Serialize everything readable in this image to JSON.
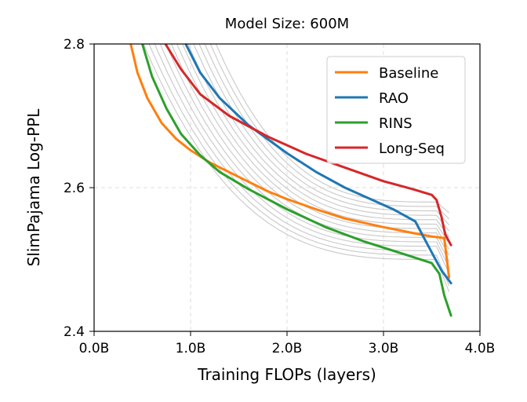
{
  "chart_data": {
    "type": "line",
    "title": "Model Size: 600M",
    "xlabel": "Training FLOPs (layers)",
    "ylabel": "SlimPajama Log-PPL",
    "xlim": [
      0,
      4.0
    ],
    "ylim": [
      2.4,
      2.8
    ],
    "xticks": [
      0,
      1,
      2,
      3,
      4
    ],
    "xtick_labels": [
      "0.0B",
      "1.0B",
      "2.0B",
      "3.0B",
      "4.0B"
    ],
    "yticks": [
      2.4,
      2.6,
      2.8
    ],
    "ytick_labels": [
      "2.4",
      "2.6",
      "2.8"
    ],
    "grid": true,
    "legend_position": "top-right",
    "series": [
      {
        "name": "Baseline",
        "color": "#ff7f0e",
        "points": [
          [
            0.38,
            2.8
          ],
          [
            0.45,
            2.76
          ],
          [
            0.55,
            2.725
          ],
          [
            0.7,
            2.69
          ],
          [
            0.85,
            2.668
          ],
          [
            1.0,
            2.652
          ],
          [
            1.2,
            2.635
          ],
          [
            1.5,
            2.615
          ],
          [
            1.8,
            2.595
          ],
          [
            2.0,
            2.584
          ],
          [
            2.3,
            2.57
          ],
          [
            2.6,
            2.557
          ],
          [
            3.0,
            2.545
          ],
          [
            3.3,
            2.537
          ],
          [
            3.5,
            2.532
          ],
          [
            3.63,
            2.53
          ],
          [
            3.68,
            2.475
          ]
        ]
      },
      {
        "name": "RAO",
        "color": "#1f77b4",
        "points": [
          [
            0.95,
            2.8
          ],
          [
            1.1,
            2.76
          ],
          [
            1.3,
            2.725
          ],
          [
            1.6,
            2.687
          ],
          [
            2.0,
            2.648
          ],
          [
            2.3,
            2.622
          ],
          [
            2.6,
            2.6
          ],
          [
            2.9,
            2.582
          ],
          [
            3.1,
            2.57
          ],
          [
            3.33,
            2.553
          ],
          [
            3.42,
            2.53
          ],
          [
            3.5,
            2.51
          ],
          [
            3.6,
            2.485
          ],
          [
            3.7,
            2.467
          ]
        ]
      },
      {
        "name": "RINS",
        "color": "#2ca02c",
        "points": [
          [
            0.5,
            2.8
          ],
          [
            0.6,
            2.755
          ],
          [
            0.75,
            2.71
          ],
          [
            0.9,
            2.675
          ],
          [
            1.1,
            2.645
          ],
          [
            1.3,
            2.622
          ],
          [
            1.6,
            2.598
          ],
          [
            2.0,
            2.57
          ],
          [
            2.4,
            2.545
          ],
          [
            2.8,
            2.525
          ],
          [
            3.2,
            2.508
          ],
          [
            3.5,
            2.495
          ],
          [
            3.58,
            2.48
          ],
          [
            3.63,
            2.45
          ],
          [
            3.7,
            2.422
          ]
        ]
      },
      {
        "name": "Long-Seq",
        "color": "#d62728",
        "points": [
          [
            0.74,
            2.8
          ],
          [
            0.9,
            2.765
          ],
          [
            1.1,
            2.73
          ],
          [
            1.4,
            2.7
          ],
          [
            1.8,
            2.671
          ],
          [
            2.2,
            2.647
          ],
          [
            2.6,
            2.628
          ],
          [
            3.0,
            2.609
          ],
          [
            3.3,
            2.598
          ],
          [
            3.5,
            2.59
          ],
          [
            3.55,
            2.583
          ],
          [
            3.6,
            2.56
          ],
          [
            3.64,
            2.535
          ],
          [
            3.7,
            2.52
          ]
        ]
      }
    ],
    "background_series_count": 14,
    "background_color": "#c8c8c8"
  }
}
